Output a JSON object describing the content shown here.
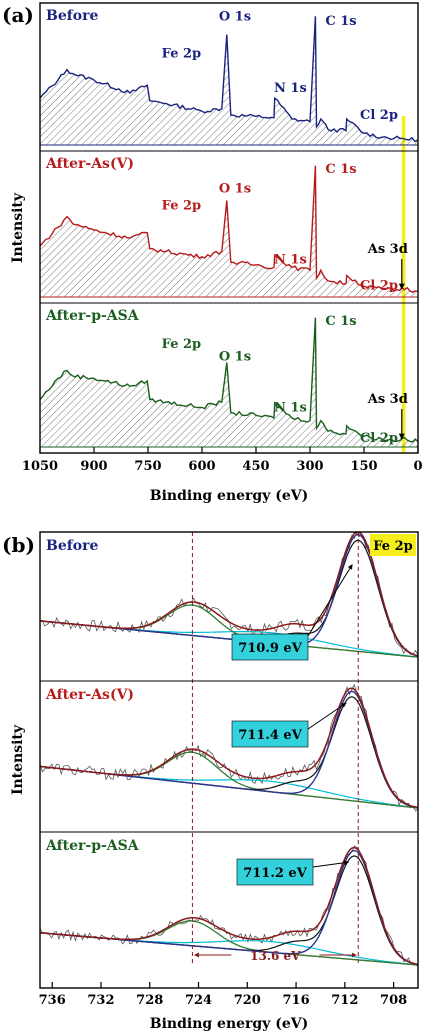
{
  "chart_data": [
    {
      "panel_label": "(a)",
      "type": "line",
      "xlabel": "Binding energy (eV)",
      "ylabel": "Intensity",
      "x_reversed": true,
      "xlim": [
        1050,
        0
      ],
      "xticks": [
        1050,
        900,
        750,
        600,
        450,
        300,
        150,
        0
      ],
      "highlight_band_ev": [
        45,
        35
      ],
      "hatched_area": true,
      "series": [
        {
          "name": "Before",
          "color": "#1a237e",
          "x": [
            1050,
            1000,
            975,
            960,
            900,
            800,
            752,
            745,
            700,
            600,
            545,
            531,
            520,
            450,
            400,
            398,
            350,
            300,
            285,
            282,
            270,
            250,
            200,
            198,
            150,
            100,
            50,
            0
          ],
          "y": [
            0.36,
            0.5,
            0.58,
            0.55,
            0.5,
            0.4,
            0.46,
            0.34,
            0.32,
            0.26,
            0.28,
            0.85,
            0.23,
            0.22,
            0.21,
            0.36,
            0.2,
            0.18,
            0.99,
            0.14,
            0.2,
            0.12,
            0.11,
            0.2,
            0.09,
            0.06,
            0.05,
            0.04
          ]
        },
        {
          "name": "After-As(V)",
          "color": "#b71c1c",
          "x": [
            1050,
            1000,
            975,
            960,
            900,
            800,
            752,
            745,
            700,
            600,
            545,
            531,
            520,
            450,
            400,
            398,
            350,
            300,
            285,
            282,
            270,
            250,
            200,
            198,
            150,
            100,
            50,
            45,
            0
          ],
          "y": [
            0.38,
            0.52,
            0.6,
            0.55,
            0.5,
            0.44,
            0.48,
            0.36,
            0.34,
            0.3,
            0.34,
            0.72,
            0.26,
            0.24,
            0.22,
            0.31,
            0.22,
            0.2,
            0.98,
            0.14,
            0.2,
            0.12,
            0.1,
            0.16,
            0.08,
            0.06,
            0.05,
            0.07,
            0.04
          ]
        },
        {
          "name": "After-p-ASA",
          "color": "#1b5e20",
          "x": [
            1050,
            1000,
            975,
            960,
            900,
            800,
            752,
            745,
            700,
            600,
            545,
            531,
            520,
            450,
            400,
            398,
            350,
            300,
            285,
            282,
            270,
            250,
            200,
            198,
            150,
            100,
            50,
            45,
            0
          ],
          "y": [
            0.36,
            0.52,
            0.58,
            0.54,
            0.52,
            0.46,
            0.5,
            0.36,
            0.34,
            0.3,
            0.34,
            0.64,
            0.26,
            0.24,
            0.22,
            0.33,
            0.22,
            0.2,
            0.98,
            0.14,
            0.2,
            0.12,
            0.1,
            0.16,
            0.08,
            0.06,
            0.05,
            0.07,
            0.04
          ]
        }
      ],
      "peak_labels": [
        {
          "series": 0,
          "text": "Fe 2p",
          "x": 712
        },
        {
          "series": 0,
          "text": "O 1s",
          "x": 531
        },
        {
          "series": 0,
          "text": "N 1s",
          "x": 400
        },
        {
          "series": 0,
          "text": "C 1s",
          "x": 285
        },
        {
          "series": 0,
          "text": "Cl 2p",
          "x": 200
        },
        {
          "series": 1,
          "text": "Fe 2p",
          "x": 712
        },
        {
          "series": 1,
          "text": "O 1s",
          "x": 531
        },
        {
          "series": 1,
          "text": "N 1s",
          "x": 400
        },
        {
          "series": 1,
          "text": "C 1s",
          "x": 285
        },
        {
          "series": 1,
          "text": "Cl 2p",
          "x": 200
        },
        {
          "series": 1,
          "text": "As 3d",
          "x": 45
        },
        {
          "series": 2,
          "text": "Fe 2p",
          "x": 712
        },
        {
          "series": 2,
          "text": "O 1s",
          "x": 531
        },
        {
          "series": 2,
          "text": "N 1s",
          "x": 400
        },
        {
          "series": 2,
          "text": "C 1s",
          "x": 285
        },
        {
          "series": 2,
          "text": "Cl 2p",
          "x": 200
        },
        {
          "series": 2,
          "text": "As 3d",
          "x": 45
        }
      ]
    },
    {
      "panel_label": "(b)",
      "type": "line",
      "xlabel": "Binding energy (eV)",
      "ylabel": "Intensity",
      "x_reversed": true,
      "xlim": [
        737,
        706
      ],
      "xticks": [
        736,
        732,
        728,
        724,
        720,
        716,
        712,
        708
      ],
      "region_label": "Fe 2p",
      "dashed_lines_ev": [
        724.5,
        710.9
      ],
      "separation_label": "13.6 eV",
      "panels": [
        {
          "name": "Before",
          "color": "#1a237e",
          "peak_label": "710.9 eV",
          "peak_ev": 710.9,
          "satellite_ev": 724.5,
          "peak_height": 1.0,
          "satellite_height": 0.52,
          "baseline": [
            0.36,
            0.05
          ],
          "noise": 0.05
        },
        {
          "name": "After-As(V)",
          "color": "#b71c1c",
          "peak_label": "711.4 eV",
          "peak_ev": 711.4,
          "satellite_ev": 724.5,
          "peak_height": 0.92,
          "satellite_height": 0.52,
          "baseline": [
            0.4,
            0.05
          ],
          "noise": 0.05
        },
        {
          "name": "After-p-ASA",
          "color": "#1b5e20",
          "peak_label": "711.2 eV",
          "peak_ev": 711.2,
          "satellite_ev": 724.5,
          "peak_height": 0.88,
          "satellite_height": 0.4,
          "baseline": [
            0.3,
            0.04
          ],
          "noise": 0.04
        }
      ],
      "fit_colors": {
        "envelope": "#8b1a1a",
        "main_peak": "#283593",
        "satellite": "#2e7d32",
        "component": "#00bcd4",
        "background": "#a0522d",
        "shoulder": "#111111"
      }
    }
  ],
  "highlight_color": "#f5ee1c",
  "annotation_box_color": "#33d1dc"
}
